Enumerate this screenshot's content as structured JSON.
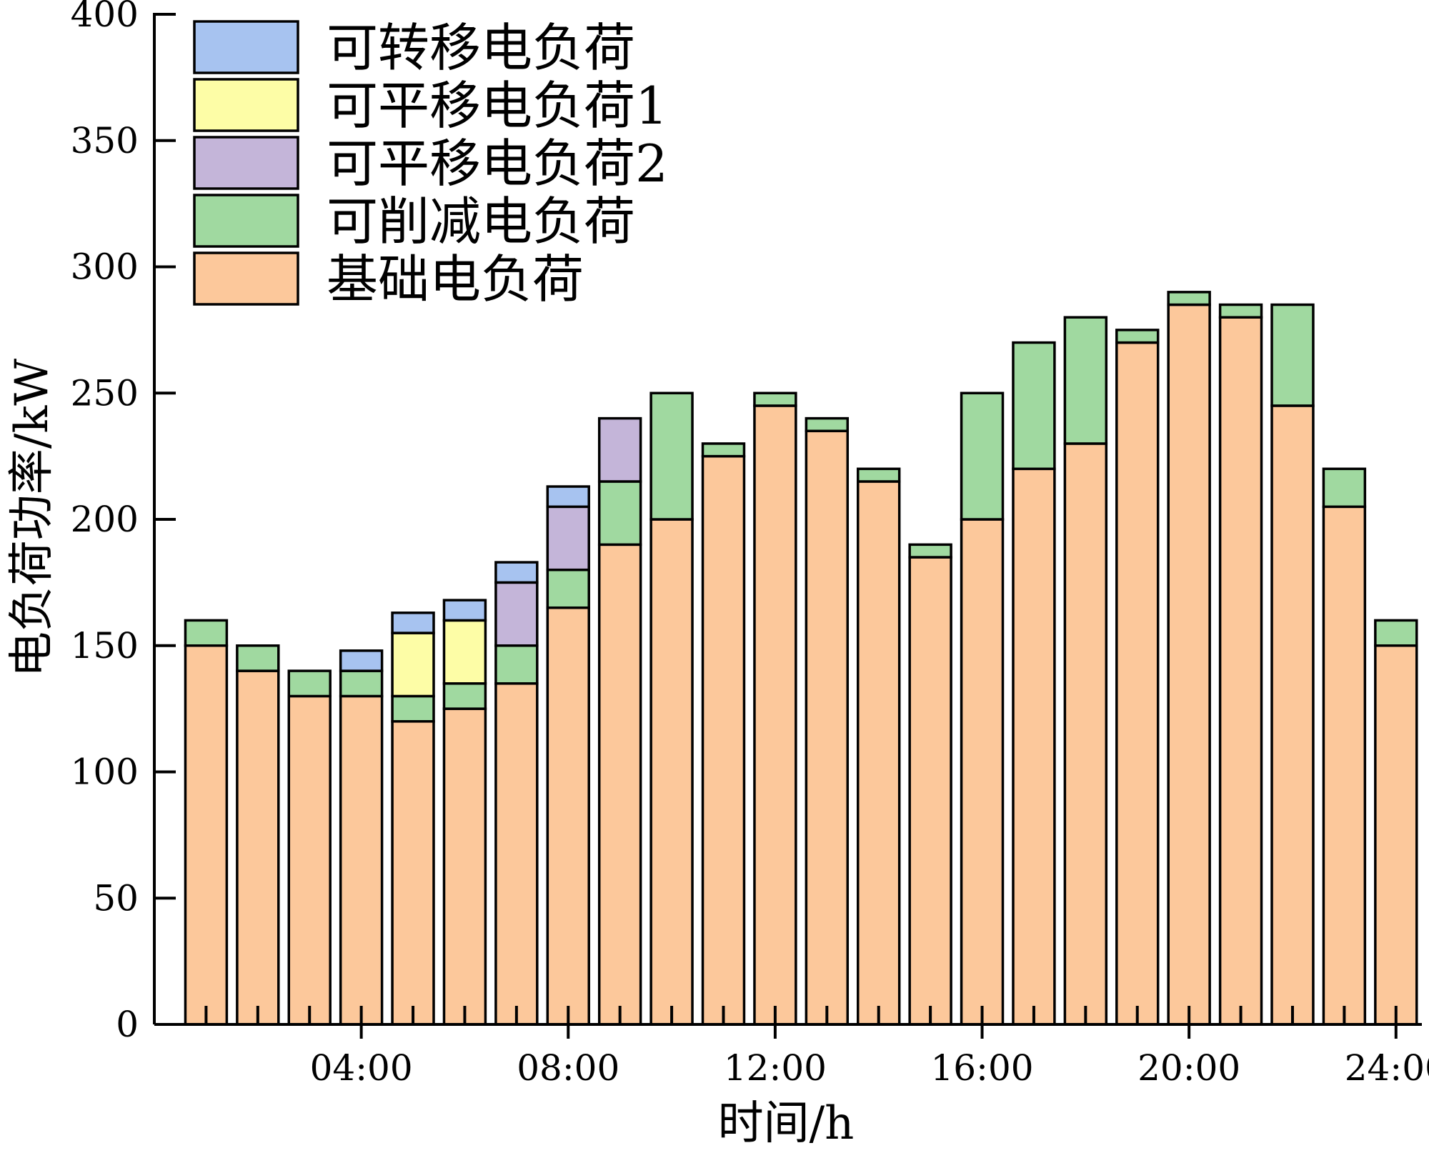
{
  "chart_data": {
    "type": "bar",
    "stacked": true,
    "ylabel": "电负荷功率/kW",
    "xlabel": "时间/h",
    "ylim": [
      0,
      400
    ],
    "yticks": [
      0,
      50,
      100,
      150,
      200,
      250,
      300,
      350,
      400
    ],
    "xlim": [
      0,
      24.5
    ],
    "x_tick_labels": [
      "04:00",
      "08:00",
      "12:00",
      "16:00",
      "20:00",
      "24:00"
    ],
    "x_tick_values": [
      4,
      8,
      12,
      16,
      20,
      24
    ],
    "categories": [
      1,
      2,
      3,
      4,
      5,
      6,
      7,
      8,
      9,
      10,
      11,
      12,
      13,
      14,
      15,
      16,
      17,
      18,
      19,
      20,
      21,
      22,
      23,
      24
    ],
    "legend_position": "top-left",
    "series": [
      {
        "name": "基础电负荷",
        "color": "#FCC89B",
        "values": [
          150,
          140,
          130,
          130,
          120,
          125,
          135,
          165,
          190,
          200,
          225,
          245,
          235,
          215,
          185,
          200,
          220,
          230,
          270,
          285,
          280,
          245,
          205,
          150
        ]
      },
      {
        "name": "可削减电负荷",
        "color": "#A0D9A0",
        "values": [
          10,
          10,
          10,
          10,
          10,
          10,
          15,
          15,
          25,
          50,
          5,
          5,
          5,
          5,
          5,
          50,
          50,
          50,
          5,
          5,
          5,
          40,
          15,
          10
        ]
      },
      {
        "name": "可平移电负荷2",
        "color": "#C4B5D9",
        "values": [
          0,
          0,
          0,
          0,
          0,
          0,
          25,
          25,
          25,
          0,
          0,
          0,
          0,
          0,
          0,
          0,
          0,
          0,
          0,
          0,
          0,
          0,
          0,
          0
        ]
      },
      {
        "name": "可平移电负荷1",
        "color": "#FDFDA6",
        "values": [
          0,
          0,
          0,
          0,
          25,
          25,
          0,
          0,
          0,
          0,
          0,
          0,
          0,
          0,
          0,
          0,
          0,
          0,
          0,
          0,
          0,
          0,
          0,
          0
        ]
      },
      {
        "name": "可转移电负荷",
        "color": "#A7C3F0",
        "values": [
          0,
          0,
          0,
          8,
          8,
          8,
          8,
          8,
          0,
          0,
          0,
          0,
          0,
          0,
          0,
          0,
          0,
          0,
          0,
          0,
          0,
          0,
          0,
          0
        ]
      }
    ],
    "legend_order": [
      "可转移电负荷",
      "可平移电负荷1",
      "可平移电负荷2",
      "可削减电负荷",
      "基础电负荷"
    ]
  }
}
